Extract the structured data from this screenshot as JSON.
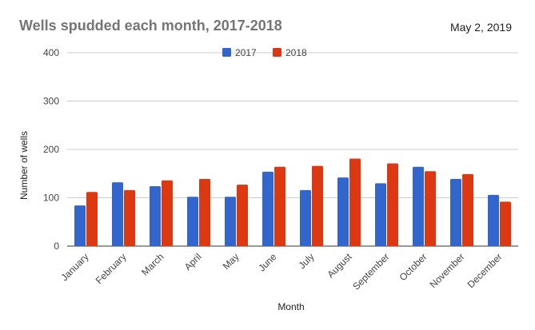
{
  "header": {
    "title": "Wells spudded each month, 2017-2018",
    "date": "May 2, 2019"
  },
  "chart_data": {
    "type": "bar",
    "title": "Wells spudded each month, 2017-2018",
    "xlabel": "Month",
    "ylabel": "Number of wells",
    "ylim": [
      0,
      400
    ],
    "yticks": [
      0,
      100,
      200,
      300,
      400
    ],
    "grid": true,
    "legend_position": "top",
    "categories": [
      "January",
      "February",
      "March",
      "April",
      "May",
      "June",
      "July",
      "August",
      "September",
      "October",
      "November",
      "December"
    ],
    "series": [
      {
        "name": "2017",
        "color": "#3366cc",
        "values": [
          84,
          132,
          124,
          102,
          102,
          154,
          116,
          142,
          130,
          164,
          139,
          106
        ]
      },
      {
        "name": "2018",
        "color": "#dc3912",
        "values": [
          112,
          116,
          136,
          139,
          127,
          164,
          166,
          181,
          171,
          155,
          149,
          92
        ]
      }
    ]
  }
}
